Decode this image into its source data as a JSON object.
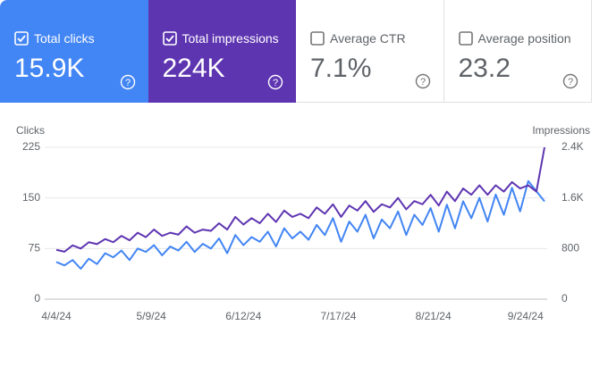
{
  "cards": [
    {
      "label": "Total clicks",
      "value": "15.9K",
      "checked": true,
      "color": "#4285f4"
    },
    {
      "label": "Total impressions",
      "value": "224K",
      "checked": true,
      "color": "#5e35b1"
    },
    {
      "label": "Average CTR",
      "value": "7.1%",
      "checked": false,
      "color": "#ffffff"
    },
    {
      "label": "Average position",
      "value": "23.2",
      "checked": false,
      "color": "#ffffff"
    }
  ],
  "chart_data": {
    "type": "line",
    "ylabel": "Clicks",
    "y2label": "Impressions",
    "x": [
      "4/4/24",
      "4/7/24",
      "4/10/24",
      "4/13/24",
      "4/16/24",
      "4/19/24",
      "4/22/24",
      "4/25/24",
      "4/28/24",
      "5/1/24",
      "5/4/24",
      "5/7/24",
      "5/10/24",
      "5/13/24",
      "5/16/24",
      "5/19/24",
      "5/22/24",
      "5/25/24",
      "5/28/24",
      "5/31/24",
      "6/3/24",
      "6/6/24",
      "6/9/24",
      "6/12/24",
      "6/15/24",
      "6/18/24",
      "6/21/24",
      "6/24/24",
      "6/27/24",
      "6/30/24",
      "7/3/24",
      "7/6/24",
      "7/9/24",
      "7/12/24",
      "7/15/24",
      "7/18/24",
      "7/21/24",
      "7/24/24",
      "7/27/24",
      "7/30/24",
      "8/2/24",
      "8/5/24",
      "8/8/24",
      "8/11/24",
      "8/14/24",
      "8/17/24",
      "8/20/24",
      "8/23/24",
      "8/26/24",
      "8/29/24",
      "9/1/24",
      "9/4/24",
      "9/7/24",
      "9/10/24",
      "9/13/24",
      "9/16/24",
      "9/19/24",
      "9/22/24",
      "9/25/24",
      "9/28/24",
      "10/1/24"
    ],
    "xticks": [
      "4/4/24",
      "5/9/24",
      "6/12/24",
      "7/17/24",
      "8/21/24",
      "9/24/24"
    ],
    "series": [
      {
        "name": "Clicks",
        "color": "#4285f4",
        "axis": "y",
        "values": [
          55,
          50,
          58,
          45,
          60,
          52,
          68,
          62,
          72,
          58,
          75,
          70,
          80,
          65,
          78,
          72,
          85,
          70,
          82,
          75,
          90,
          68,
          95,
          80,
          92,
          85,
          100,
          78,
          105,
          90,
          100,
          88,
          110,
          95,
          120,
          85,
          115,
          100,
          125,
          90,
          118,
          105,
          130,
          95,
          125,
          110,
          135,
          100,
          140,
          105,
          145,
          120,
          150,
          115,
          155,
          125,
          165,
          130,
          175,
          160,
          145
        ]
      },
      {
        "name": "Impressions",
        "color": "#5e35b1",
        "axis": "y2",
        "values": [
          780,
          750,
          850,
          800,
          900,
          870,
          950,
          900,
          1000,
          930,
          1050,
          980,
          1100,
          1000,
          1050,
          1020,
          1150,
          1050,
          1100,
          1080,
          1200,
          1100,
          1300,
          1180,
          1280,
          1200,
          1350,
          1220,
          1400,
          1300,
          1350,
          1280,
          1450,
          1350,
          1500,
          1300,
          1480,
          1400,
          1550,
          1380,
          1500,
          1450,
          1600,
          1420,
          1550,
          1500,
          1650,
          1480,
          1700,
          1550,
          1750,
          1650,
          1800,
          1650,
          1800,
          1700,
          1850,
          1750,
          1800,
          1700,
          2400
        ]
      }
    ],
    "ylim": [
      0,
      225
    ],
    "yticks": [
      0,
      75,
      150,
      225
    ],
    "y2lim": [
      0,
      2400
    ],
    "y2ticks": [
      0,
      800,
      {
        "value": 1600,
        "label": "1.6K"
      },
      {
        "value": 2400,
        "label": "2.4K"
      }
    ],
    "grid": true
  }
}
